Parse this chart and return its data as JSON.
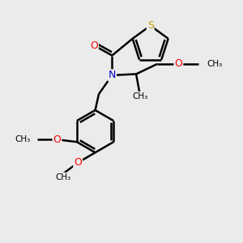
{
  "background_color": "#ebebeb",
  "bond_color": "#000000",
  "atom_colors": {
    "S": "#b8a000",
    "O": "#ff0000",
    "N": "#0000cc",
    "C": "#000000"
  },
  "bond_lw": 1.8,
  "figsize": [
    3.0,
    3.0
  ],
  "dpi": 100,
  "xlim": [
    0,
    10
  ],
  "ylim": [
    0,
    10
  ],
  "font_size_atom": 8.5,
  "font_size_group": 7.5
}
